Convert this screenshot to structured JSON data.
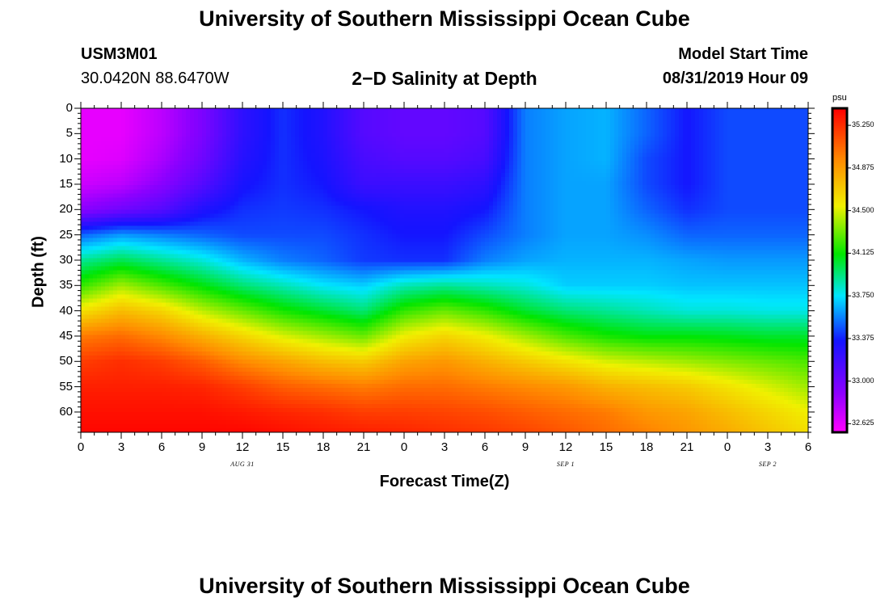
{
  "header": {
    "title": "University of Southern Mississippi Ocean Cube",
    "station_id": "USM3M01",
    "station_coords": "30.0420N 88.6470W",
    "plot_title": "2−D Salinity at Depth",
    "model_start_label": "Model Start Time",
    "model_start_value": "08/31/2019 Hour 09"
  },
  "footer": {
    "title": "University of Southern Mississippi Ocean Cube"
  },
  "chart_data": {
    "type": "heatmap",
    "title": "2−D Salinity at Depth",
    "xlabel": "Forecast Time(Z)",
    "ylabel": "Depth (ft)",
    "x_tick_labels": [
      "0",
      "3",
      "6",
      "9",
      "12",
      "15",
      "18",
      "21",
      "0",
      "3",
      "6",
      "9",
      "12",
      "15",
      "18",
      "21",
      "0",
      "3",
      "6"
    ],
    "x_range_hours": [
      0,
      54
    ],
    "date_labels": [
      {
        "text": "AUG 31",
        "hour": 12
      },
      {
        "text": "SEP 1",
        "hour": 36
      },
      {
        "text": "SEP 2",
        "hour": 51
      }
    ],
    "y_tick_labels": [
      "0",
      "5",
      "10",
      "15",
      "20",
      "25",
      "30",
      "35",
      "40",
      "45",
      "50",
      "55",
      "60"
    ],
    "y_range_ft": [
      0,
      64
    ],
    "colorbar": {
      "unit": "psu",
      "ticks": [
        "35.250",
        "34.875",
        "34.500",
        "34.125",
        "33.750",
        "33.375",
        "33.000",
        "32.625"
      ],
      "range": [
        32.55,
        35.4
      ]
    },
    "hours": [
      0,
      3,
      6,
      9,
      12,
      15,
      18,
      21,
      24,
      27,
      30,
      33,
      36,
      39,
      42,
      45,
      48,
      51,
      54
    ],
    "depths_ft": [
      0,
      5,
      10,
      15,
      20,
      25,
      30,
      35,
      40,
      45,
      50,
      55,
      60,
      64
    ],
    "salinity_psu": [
      [
        32.62,
        32.62,
        32.75,
        32.95,
        33.25,
        33.4,
        33.3,
        33.1,
        33.05,
        33.05,
        33.1,
        33.55,
        33.62,
        33.65,
        33.5,
        33.35,
        33.45,
        33.45,
        33.45
      ],
      [
        32.62,
        32.62,
        32.75,
        32.95,
        33.25,
        33.4,
        33.3,
        33.1,
        33.05,
        33.05,
        33.1,
        33.55,
        33.62,
        33.65,
        33.5,
        33.35,
        33.45,
        33.45,
        33.45
      ],
      [
        32.62,
        32.65,
        32.8,
        33.0,
        33.28,
        33.4,
        33.32,
        33.15,
        33.1,
        33.1,
        33.15,
        33.55,
        33.62,
        33.65,
        33.45,
        33.35,
        33.45,
        33.45,
        33.45
      ],
      [
        32.7,
        32.75,
        32.9,
        33.1,
        33.33,
        33.4,
        33.35,
        33.2,
        33.2,
        33.2,
        33.25,
        33.55,
        33.62,
        33.62,
        33.45,
        33.35,
        33.45,
        33.45,
        33.45
      ],
      [
        32.9,
        33.0,
        33.1,
        33.3,
        33.4,
        33.42,
        33.4,
        33.35,
        33.3,
        33.3,
        33.35,
        33.55,
        33.62,
        33.62,
        33.5,
        33.4,
        33.45,
        33.45,
        33.45
      ],
      [
        33.5,
        33.6,
        33.55,
        33.5,
        33.45,
        33.45,
        33.45,
        33.4,
        33.35,
        33.35,
        33.45,
        33.55,
        33.62,
        33.62,
        33.58,
        33.5,
        33.5,
        33.5,
        33.5
      ],
      [
        33.9,
        34.0,
        33.9,
        33.8,
        33.65,
        33.55,
        33.5,
        33.42,
        33.4,
        33.4,
        33.55,
        33.62,
        33.65,
        33.65,
        33.65,
        33.62,
        33.6,
        33.6,
        33.6
      ],
      [
        34.2,
        34.4,
        34.25,
        34.1,
        33.95,
        33.85,
        33.75,
        33.7,
        33.85,
        33.9,
        33.85,
        33.8,
        33.7,
        33.7,
        33.7,
        33.68,
        33.68,
        33.68,
        33.68
      ],
      [
        34.6,
        34.75,
        34.65,
        34.45,
        34.3,
        34.15,
        34.05,
        33.95,
        34.2,
        34.3,
        34.2,
        34.05,
        33.95,
        33.9,
        33.85,
        33.8,
        33.8,
        33.78,
        33.78
      ],
      [
        35.0,
        35.05,
        34.95,
        34.8,
        34.65,
        34.5,
        34.4,
        34.3,
        34.55,
        34.65,
        34.55,
        34.4,
        34.25,
        34.15,
        34.1,
        34.1,
        34.08,
        34.05,
        34.05
      ],
      [
        35.2,
        35.25,
        35.2,
        35.1,
        34.95,
        34.85,
        34.75,
        34.7,
        34.85,
        34.9,
        34.8,
        34.7,
        34.6,
        34.5,
        34.45,
        34.4,
        34.35,
        34.3,
        34.25
      ],
      [
        35.3,
        35.3,
        35.3,
        35.28,
        35.2,
        35.1,
        35.05,
        35.0,
        35.05,
        35.05,
        35.0,
        34.95,
        34.9,
        34.8,
        34.75,
        34.7,
        34.6,
        34.5,
        34.4
      ],
      [
        35.35,
        35.35,
        35.35,
        35.35,
        35.32,
        35.28,
        35.25,
        35.2,
        35.2,
        35.18,
        35.15,
        35.1,
        35.05,
        35.0,
        34.9,
        34.85,
        34.75,
        34.65,
        34.55
      ],
      [
        35.38,
        35.38,
        35.38,
        35.38,
        35.38,
        35.35,
        35.32,
        35.3,
        35.28,
        35.25,
        35.22,
        35.18,
        35.12,
        35.05,
        34.98,
        34.9,
        34.82,
        34.72,
        34.62
      ]
    ]
  }
}
